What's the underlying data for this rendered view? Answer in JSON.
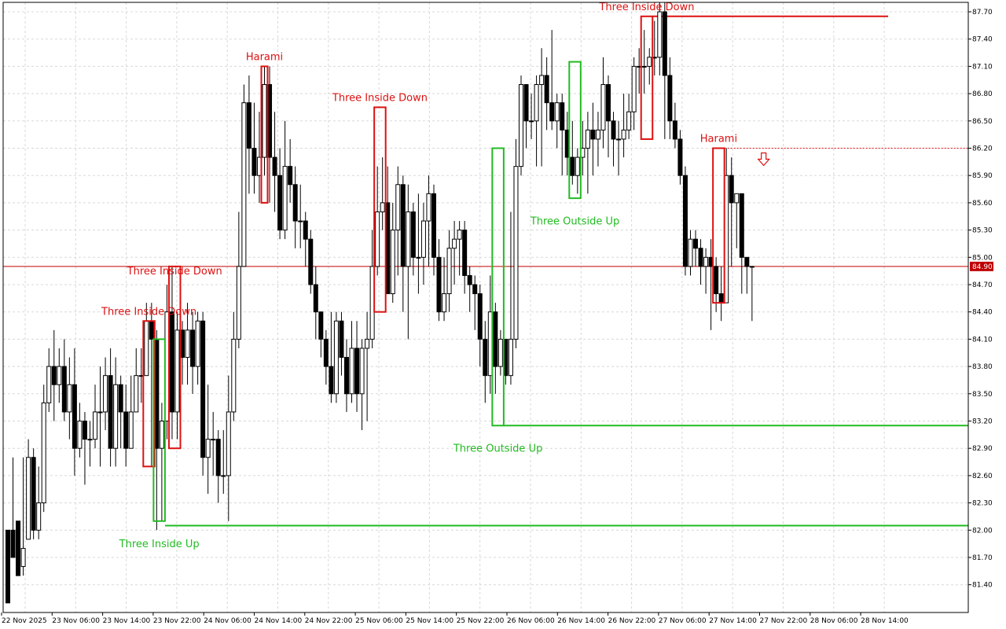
{
  "chart_data": {
    "type": "candlestick",
    "ylim": [
      81.2,
      87.8
    ],
    "y_ticks": [
      "87.70",
      "87.40",
      "87.10",
      "86.80",
      "86.50",
      "86.20",
      "85.90",
      "85.60",
      "85.30",
      "85.00",
      "84.70",
      "84.40",
      "84.10",
      "83.80",
      "83.50",
      "83.20",
      "82.90",
      "82.60",
      "82.30",
      "82.00",
      "81.70",
      "81.40"
    ],
    "x_ticks": [
      "22 Nov 2025",
      "23 Nov 06:00",
      "23 Nov 14:00",
      "23 Nov 22:00",
      "24 Nov 06:00",
      "24 Nov 14:00",
      "24 Nov 22:00",
      "25 Nov 06:00",
      "25 Nov 14:00",
      "25 Nov 22:00",
      "26 Nov 06:00",
      "26 Nov 14:00",
      "26 Nov 22:00",
      "27 Nov 06:00",
      "27 Nov 14:00",
      "27 Nov 22:00",
      "28 Nov 06:00",
      "28 Nov 14:00"
    ],
    "current_price": {
      "label": "84.90",
      "value": 84.9,
      "color": "#c00000"
    },
    "grid": true,
    "colors": {
      "bull": "#ffffff",
      "bear": "#000000",
      "bullish_pattern": "#22bb22",
      "bearish_pattern": "#dd1111"
    },
    "candles": [
      [
        82.0,
        81.2,
        81.9,
        82.0
      ],
      [
        82.0,
        81.7,
        82.8,
        81.7
      ],
      [
        82.1,
        81.5,
        81.9,
        81.6
      ],
      [
        81.6,
        81.8,
        82.8,
        81.5
      ],
      [
        81.9,
        82.8,
        83.0,
        81.9
      ],
      [
        82.8,
        82.0,
        82.9,
        81.9
      ],
      [
        82.0,
        82.3,
        82.7,
        81.9
      ],
      [
        82.3,
        83.4,
        83.6,
        82.2
      ],
      [
        83.4,
        83.8,
        84.0,
        83.3
      ],
      [
        83.8,
        83.6,
        84.2,
        83.2
      ],
      [
        83.6,
        83.8,
        84.0,
        83.4
      ],
      [
        83.8,
        83.3,
        84.1,
        83.2
      ],
      [
        83.3,
        83.6,
        83.9,
        83.0
      ],
      [
        83.6,
        82.9,
        84.0,
        82.6
      ],
      [
        82.9,
        83.2,
        83.4,
        82.8
      ],
      [
        83.2,
        83.0,
        83.3,
        82.5
      ],
      [
        83.0,
        83.0,
        83.2,
        82.7
      ],
      [
        83.0,
        83.3,
        83.6,
        82.9
      ],
      [
        83.3,
        83.3,
        83.8,
        82.7
      ],
      [
        83.3,
        83.7,
        83.9,
        83.1
      ],
      [
        83.7,
        82.9,
        84.0,
        82.7
      ],
      [
        82.9,
        83.6,
        83.9,
        82.7
      ],
      [
        83.6,
        83.3,
        83.7,
        82.9
      ],
      [
        83.3,
        82.9,
        83.6,
        82.7
      ],
      [
        82.9,
        83.3,
        83.7,
        82.9
      ],
      [
        83.3,
        83.7,
        84.0,
        83.3
      ],
      [
        83.7,
        83.7,
        84.0,
        83.4
      ],
      [
        83.7,
        84.3,
        84.5,
        83.7
      ],
      [
        84.3,
        84.1,
        84.5,
        82.7
      ],
      [
        84.1,
        82.9,
        84.2,
        82.0
      ],
      [
        82.9,
        83.2,
        83.4,
        82.1
      ],
      [
        83.2,
        84.4,
        84.7,
        83.0
      ],
      [
        84.4,
        83.3,
        84.9,
        83.0
      ],
      [
        83.3,
        84.2,
        84.4,
        83.0
      ],
      [
        84.2,
        83.9,
        84.3,
        83.6
      ],
      [
        83.9,
        84.2,
        84.5,
        83.6
      ],
      [
        84.2,
        83.8,
        84.4,
        83.5
      ],
      [
        83.8,
        84.3,
        84.4,
        83.6
      ],
      [
        84.3,
        82.8,
        84.4,
        82.6
      ],
      [
        82.8,
        83.0,
        83.6,
        82.4
      ],
      [
        83.0,
        83.0,
        83.3,
        82.6
      ],
      [
        83.0,
        82.6,
        83.1,
        82.3
      ],
      [
        82.6,
        82.6,
        83.1,
        82.4
      ],
      [
        82.6,
        83.3,
        83.7,
        82.1
      ],
      [
        83.3,
        84.1,
        84.4,
        83.2
      ],
      [
        84.1,
        84.9,
        85.5,
        84.0
      ],
      [
        84.9,
        86.7,
        86.9,
        84.9
      ],
      [
        86.7,
        86.2,
        87.0,
        85.7
      ],
      [
        86.2,
        85.9,
        86.7,
        85.7
      ],
      [
        85.9,
        86.1,
        86.6,
        85.6
      ],
      [
        86.1,
        86.9,
        87.1,
        85.9
      ],
      [
        86.9,
        86.1,
        87.1,
        85.6
      ],
      [
        86.1,
        85.9,
        86.6,
        85.5
      ],
      [
        85.9,
        85.3,
        86.2,
        85.2
      ],
      [
        85.3,
        86.0,
        86.5,
        85.2
      ],
      [
        86.0,
        85.8,
        86.3,
        85.6
      ],
      [
        85.8,
        85.4,
        86.0,
        85.1
      ],
      [
        85.4,
        85.4,
        85.8,
        85.1
      ],
      [
        85.4,
        85.2,
        85.5,
        84.9
      ],
      [
        85.2,
        84.7,
        85.3,
        84.6
      ],
      [
        84.7,
        84.4,
        84.9,
        84.1
      ],
      [
        84.4,
        84.1,
        84.4,
        83.9
      ],
      [
        84.1,
        83.8,
        84.2,
        83.6
      ],
      [
        83.8,
        83.5,
        84.4,
        83.4
      ],
      [
        83.5,
        84.3,
        84.4,
        83.4
      ],
      [
        84.3,
        83.9,
        84.4,
        83.7
      ],
      [
        83.9,
        83.5,
        84.1,
        83.3
      ],
      [
        83.5,
        84.0,
        84.3,
        83.4
      ],
      [
        84.0,
        83.5,
        84.3,
        83.3
      ],
      [
        83.5,
        84.0,
        84.1,
        83.1
      ],
      [
        84.0,
        84.1,
        84.4,
        83.2
      ],
      [
        84.1,
        84.9,
        85.3,
        84.0
      ],
      [
        84.9,
        85.5,
        86.0,
        84.8
      ],
      [
        85.5,
        85.6,
        86.1,
        85.3
      ],
      [
        85.6,
        84.6,
        86.0,
        84.6
      ],
      [
        84.6,
        85.3,
        85.6,
        84.5
      ],
      [
        85.3,
        85.8,
        86.0,
        84.8
      ],
      [
        85.8,
        84.9,
        85.9,
        84.4
      ],
      [
        84.9,
        85.5,
        85.8,
        84.1
      ],
      [
        85.5,
        85.0,
        85.6,
        84.8
      ],
      [
        85.0,
        85.0,
        85.7,
        84.6
      ],
      [
        85.0,
        85.4,
        85.6,
        84.7
      ],
      [
        85.4,
        85.7,
        85.9,
        84.9
      ],
      [
        85.7,
        85.0,
        85.8,
        84.8
      ],
      [
        85.0,
        84.4,
        85.2,
        84.3
      ],
      [
        84.4,
        84.6,
        85.0,
        84.3
      ],
      [
        84.6,
        85.1,
        85.3,
        84.4
      ],
      [
        85.1,
        85.2,
        85.4,
        84.7
      ],
      [
        85.2,
        85.3,
        85.4,
        84.8
      ],
      [
        85.3,
        84.8,
        85.4,
        84.6
      ],
      [
        84.8,
        84.7,
        84.9,
        84.4
      ],
      [
        84.7,
        84.6,
        84.8,
        84.2
      ],
      [
        84.6,
        84.1,
        84.7,
        83.8
      ],
      [
        84.1,
        83.7,
        84.3,
        83.4
      ],
      [
        83.7,
        84.4,
        84.8,
        83.5
      ],
      [
        84.4,
        83.8,
        84.5,
        83.5
      ],
      [
        83.8,
        84.1,
        84.2,
        83.7
      ],
      [
        84.1,
        83.7,
        84.1,
        83.6
      ],
      [
        83.7,
        84.1,
        85.5,
        83.6
      ],
      [
        84.1,
        86.0,
        86.3,
        84.0
      ],
      [
        86.0,
        86.9,
        87.0,
        85.9
      ],
      [
        86.9,
        86.5,
        86.9,
        86.2
      ],
      [
        86.5,
        86.5,
        86.8,
        86.3
      ],
      [
        86.5,
        86.9,
        87.0,
        86.0
      ],
      [
        86.9,
        87.0,
        87.3,
        86.0
      ],
      [
        87.0,
        86.7,
        87.2,
        86.4
      ],
      [
        86.7,
        86.5,
        87.5,
        86.4
      ],
      [
        86.5,
        86.7,
        86.8,
        86.2
      ],
      [
        86.7,
        86.4,
        86.8,
        85.9
      ],
      [
        86.4,
        86.1,
        86.6,
        85.9
      ],
      [
        86.1,
        85.9,
        86.5,
        85.8
      ],
      [
        85.9,
        86.1,
        86.2,
        85.7
      ],
      [
        86.1,
        86.2,
        86.5,
        85.9
      ],
      [
        86.2,
        86.4,
        86.6,
        85.7
      ],
      [
        86.4,
        86.3,
        86.7,
        85.9
      ],
      [
        86.3,
        86.4,
        86.6,
        86.0
      ],
      [
        86.4,
        86.9,
        87.2,
        86.2
      ],
      [
        86.9,
        86.5,
        87.0,
        86.1
      ],
      [
        86.5,
        86.3,
        86.6,
        86.0
      ],
      [
        86.3,
        86.3,
        86.5,
        85.9
      ],
      [
        86.3,
        86.4,
        86.8,
        86.1
      ],
      [
        86.4,
        86.6,
        86.8,
        86.3
      ],
      [
        86.6,
        87.1,
        87.2,
        86.4
      ],
      [
        87.1,
        87.1,
        87.3,
        86.8
      ],
      [
        87.1,
        87.1,
        87.5,
        86.8
      ],
      [
        87.1,
        87.2,
        87.3,
        86.9
      ],
      [
        87.2,
        87.2,
        87.6,
        87.0
      ],
      [
        87.2,
        87.7,
        87.8,
        87.0
      ],
      [
        87.7,
        87.0,
        87.8,
        86.3
      ],
      [
        87.0,
        86.5,
        87.2,
        86.3
      ],
      [
        86.5,
        86.3,
        86.7,
        86.2
      ],
      [
        86.3,
        85.9,
        86.4,
        85.8
      ],
      [
        85.9,
        84.9,
        86.0,
        84.8
      ],
      [
        84.9,
        85.2,
        85.3,
        84.8
      ],
      [
        85.2,
        85.1,
        85.3,
        84.9
      ],
      [
        85.1,
        84.9,
        85.2,
        84.7
      ],
      [
        84.9,
        85.0,
        85.1,
        84.6
      ],
      [
        85.0,
        84.9,
        85.2,
        84.2
      ],
      [
        84.9,
        84.6,
        85.0,
        84.4
      ],
      [
        84.6,
        84.5,
        84.9,
        84.3
      ],
      [
        84.5,
        85.9,
        86.2,
        84.5
      ],
      [
        85.9,
        85.6,
        86.1,
        84.9
      ],
      [
        85.6,
        85.7,
        85.7,
        85.1
      ],
      [
        85.7,
        85.0,
        85.7,
        84.6
      ],
      [
        85.0,
        84.9,
        85.0,
        84.6
      ],
      [
        84.9,
        84.9,
        84.9,
        84.3
      ]
    ],
    "patterns": [
      {
        "name": "Three Inside Down",
        "type": "bearish",
        "start": 27,
        "end": 28,
        "high": 84.3,
        "low": 82.7,
        "label_value": 84.35
      },
      {
        "name": "Three Inside Down",
        "type": "bearish",
        "start": 32,
        "end": 33,
        "high": 84.9,
        "low": 82.9,
        "label_value": 84.9
      },
      {
        "name": "Three Inside Up",
        "type": "bullish",
        "start": 29,
        "end": 30,
        "high": 84.1,
        "low": 82.1,
        "label_value": 81.9,
        "level": 82.05
      },
      {
        "name": "Harami",
        "type": "bearish",
        "start": 50,
        "end": 50,
        "high": 87.1,
        "low": 85.6,
        "label_value": 87.15
      },
      {
        "name": "Three Inside Down",
        "type": "bearish",
        "start": 72,
        "end": 73,
        "high": 86.65,
        "low": 84.4,
        "label_value": 86.7
      },
      {
        "name": "Three Outside Up",
        "type": "bullish",
        "start": 95,
        "end": 96,
        "high": 86.2,
        "low": 83.15,
        "label_value": 82.95,
        "level": 83.15
      },
      {
        "name": "Three Outside Up",
        "type": "bullish",
        "start": 110,
        "end": 111,
        "high": 87.15,
        "low": 85.65,
        "label_value": 85.45
      },
      {
        "name": "Three Inside Down",
        "type": "bearish",
        "start": 124,
        "end": 125,
        "high": 87.65,
        "low": 86.3,
        "label_value": 87.7,
        "level": 87.65
      },
      {
        "name": "Harami",
        "type": "bearish",
        "start": 138,
        "end": 139,
        "high": 86.2,
        "low": 84.5,
        "label_value": 86.25,
        "level": 86.2,
        "level_style": "dotted",
        "arrow": "down"
      }
    ]
  }
}
